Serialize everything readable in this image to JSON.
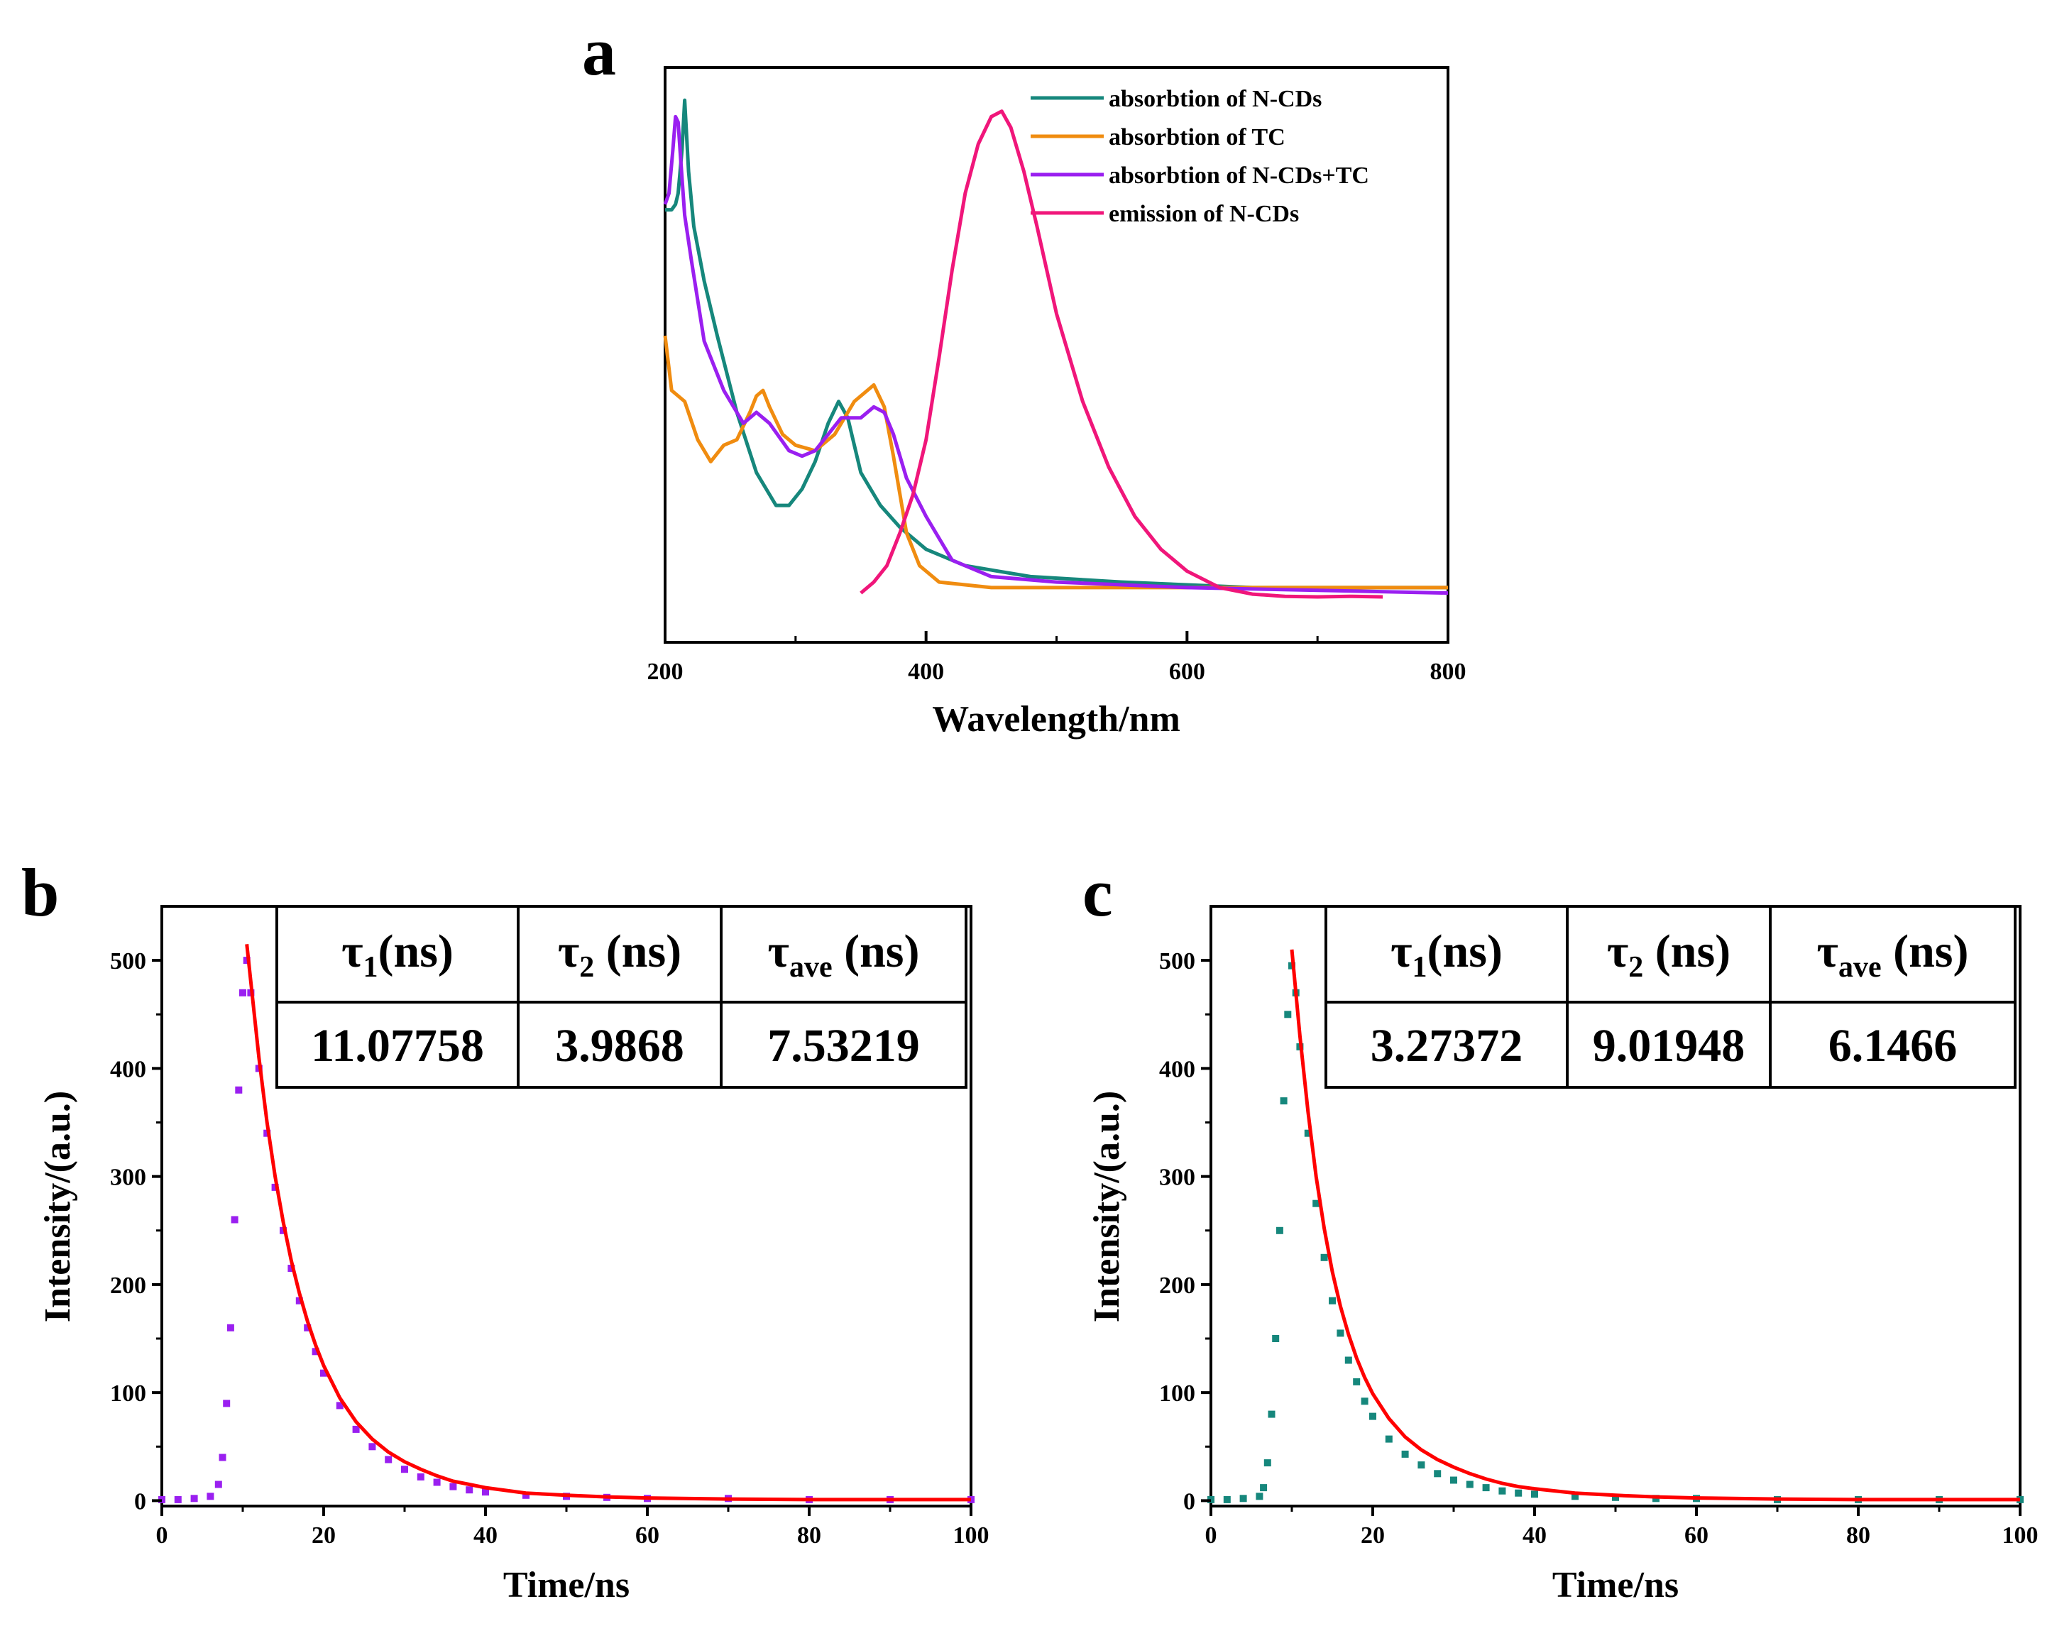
{
  "figure": {
    "panels": [
      "a",
      "b",
      "c"
    ]
  },
  "chart_data": [
    {
      "panel": "a",
      "type": "line",
      "xlabel": "Wavelength/nm",
      "ylabel": "",
      "xlim": [
        200,
        800
      ],
      "ylim": [
        0,
        1.05
      ],
      "xticks": [
        "200",
        "400",
        "600",
        "800"
      ],
      "yticks": [],
      "legend_position": "top-right",
      "colors": [
        "#16877c",
        "#f08c10",
        "#9a1ff0",
        "#f0167a"
      ],
      "series": [
        {
          "name": "absorbtion of N-CDs",
          "x": [
            200,
            203,
            205,
            208,
            210,
            213,
            215,
            218,
            222,
            230,
            240,
            255,
            270,
            285,
            295,
            305,
            315,
            325,
            333,
            340,
            350,
            365,
            380,
            400,
            430,
            480,
            550,
            650,
            800
          ],
          "y": [
            0.79,
            0.79,
            0.79,
            0.8,
            0.82,
            0.9,
            0.99,
            0.86,
            0.76,
            0.66,
            0.56,
            0.42,
            0.31,
            0.25,
            0.25,
            0.28,
            0.33,
            0.4,
            0.44,
            0.41,
            0.31,
            0.25,
            0.21,
            0.17,
            0.14,
            0.12,
            0.11,
            0.1,
            0.1
          ]
        },
        {
          "name": "absorbtion of TC",
          "x": [
            200,
            205,
            215,
            225,
            235,
            245,
            255,
            265,
            270,
            275,
            280,
            290,
            300,
            315,
            330,
            345,
            360,
            368,
            375,
            385,
            395,
            410,
            450,
            500,
            600,
            700,
            800
          ],
          "y": [
            0.56,
            0.46,
            0.44,
            0.37,
            0.33,
            0.36,
            0.37,
            0.42,
            0.45,
            0.46,
            0.43,
            0.38,
            0.36,
            0.35,
            0.38,
            0.44,
            0.47,
            0.43,
            0.34,
            0.2,
            0.14,
            0.11,
            0.1,
            0.1,
            0.1,
            0.1,
            0.1
          ]
        },
        {
          "name": "absorbtion of N-CDs+TC",
          "x": [
            200,
            203,
            206,
            208,
            210,
            212,
            215,
            220,
            230,
            245,
            260,
            270,
            280,
            295,
            305,
            315,
            325,
            335,
            350,
            360,
            368,
            375,
            385,
            400,
            420,
            450,
            500,
            600,
            800
          ],
          "y": [
            0.8,
            0.82,
            0.9,
            0.96,
            0.95,
            0.88,
            0.78,
            0.7,
            0.55,
            0.46,
            0.4,
            0.42,
            0.4,
            0.35,
            0.34,
            0.35,
            0.38,
            0.41,
            0.41,
            0.43,
            0.42,
            0.38,
            0.3,
            0.23,
            0.15,
            0.12,
            0.11,
            0.1,
            0.09
          ]
        },
        {
          "name": "emission of N-CDs",
          "x": [
            350,
            360,
            370,
            380,
            390,
            400,
            410,
            420,
            430,
            440,
            450,
            458,
            465,
            475,
            485,
            500,
            520,
            540,
            560,
            580,
            600,
            625,
            650,
            675,
            700,
            725,
            750
          ],
          "y": [
            0.09,
            0.11,
            0.14,
            0.2,
            0.27,
            0.37,
            0.52,
            0.68,
            0.82,
            0.91,
            0.96,
            0.97,
            0.94,
            0.86,
            0.76,
            0.6,
            0.44,
            0.32,
            0.23,
            0.17,
            0.13,
            0.1,
            0.088,
            0.084,
            0.083,
            0.084,
            0.083
          ]
        }
      ]
    },
    {
      "panel": "b",
      "type": "scatter",
      "xlabel": "Time/ns",
      "ylabel": "Intensity/(a.u.)",
      "xlim": [
        0,
        100
      ],
      "ylim": [
        -5,
        550
      ],
      "xticks": [
        "0",
        "20",
        "40",
        "60",
        "80",
        "100"
      ],
      "yticks": [
        "0",
        "100",
        "200",
        "300",
        "400",
        "500"
      ],
      "data_color": "#9a1ff0",
      "fit_color": "#ff0000",
      "data_points": {
        "x": [
          0,
          2,
          4,
          6,
          7,
          7.5,
          8,
          8.5,
          9,
          9.5,
          10,
          10.5,
          11,
          12,
          13,
          14,
          15,
          16,
          17,
          18,
          19,
          20,
          22,
          24,
          26,
          28,
          30,
          32,
          34,
          36,
          38,
          40,
          45,
          50,
          55,
          60,
          70,
          80,
          90,
          100
        ],
        "y": [
          1,
          1,
          2,
          4,
          15,
          40,
          90,
          160,
          260,
          380,
          470,
          500,
          470,
          400,
          340,
          290,
          250,
          215,
          185,
          160,
          138,
          118,
          88,
          66,
          50,
          38,
          29,
          22,
          17,
          13,
          10,
          8,
          5,
          4,
          3,
          2,
          2,
          1,
          1,
          1
        ]
      },
      "fit_curve": {
        "x": [
          10.5,
          11,
          12,
          13,
          14,
          15,
          16,
          17,
          18,
          19,
          20,
          22,
          24,
          26,
          28,
          30,
          32,
          34,
          36,
          38,
          40,
          45,
          50,
          55,
          60,
          70,
          80,
          90,
          100
        ],
        "y": [
          515,
          480,
          410,
          350,
          300,
          258,
          222,
          192,
          166,
          144,
          125,
          95,
          73,
          57,
          45,
          36,
          29,
          23,
          18,
          15,
          12,
          7,
          5,
          3.5,
          2.5,
          1.5,
          1,
          1,
          1
        ]
      },
      "table": {
        "headers": [
          {
            "main": "τ",
            "sub": "1",
            "unit": "(ns)"
          },
          {
            "main": "τ",
            "sub": "2",
            "unit": " (ns)"
          },
          {
            "main": "τ",
            "sub": "ave",
            "unit": " (ns)"
          }
        ],
        "values": [
          "11.07758",
          "3.9868",
          "7.53219"
        ]
      }
    },
    {
      "panel": "c",
      "type": "scatter",
      "xlabel": "Time/ns",
      "ylabel": "Intensity/(a.u.)",
      "xlim": [
        0,
        100
      ],
      "ylim": [
        -5,
        550
      ],
      "xticks": [
        "0",
        "20",
        "40",
        "60",
        "80",
        "100"
      ],
      "yticks": [
        "0",
        "100",
        "200",
        "300",
        "400",
        "500"
      ],
      "data_color": "#16877c",
      "fit_color": "#ff0000",
      "data_points": {
        "x": [
          0,
          2,
          4,
          6,
          6.5,
          7,
          7.5,
          8,
          8.5,
          9,
          9.5,
          10,
          10.5,
          11,
          12,
          13,
          14,
          15,
          16,
          17,
          18,
          19,
          20,
          22,
          24,
          26,
          28,
          30,
          32,
          34,
          36,
          38,
          40,
          45,
          50,
          55,
          60,
          70,
          80,
          90,
          100
        ],
        "y": [
          1,
          1,
          2,
          4,
          12,
          35,
          80,
          150,
          250,
          370,
          450,
          495,
          470,
          420,
          340,
          275,
          225,
          185,
          155,
          130,
          110,
          92,
          78,
          57,
          43,
          33,
          25,
          19,
          15,
          12,
          9,
          7,
          6,
          4,
          3,
          2,
          2,
          1,
          1,
          1,
          1
        ]
      },
      "fit_curve": {
        "x": [
          10,
          10.5,
          11,
          12,
          13,
          14,
          15,
          16,
          17,
          18,
          19,
          20,
          22,
          24,
          26,
          28,
          30,
          32,
          34,
          36,
          38,
          40,
          45,
          50,
          55,
          60,
          70,
          80,
          90,
          100
        ],
        "y": [
          510,
          470,
          430,
          360,
          300,
          252,
          212,
          180,
          154,
          132,
          114,
          99,
          76,
          59,
          47,
          38,
          31,
          25,
          20,
          16,
          13,
          11,
          7,
          5,
          3.5,
          2.5,
          1.5,
          1,
          1,
          1
        ]
      },
      "table": {
        "headers": [
          {
            "main": "τ",
            "sub": "1",
            "unit": "(ns)"
          },
          {
            "main": "τ",
            "sub": "2",
            "unit": " (ns)"
          },
          {
            "main": "τ",
            "sub": "ave",
            "unit": " (ns)"
          }
        ],
        "values": [
          "3.27372",
          "9.01948",
          "6.1466"
        ]
      }
    }
  ]
}
